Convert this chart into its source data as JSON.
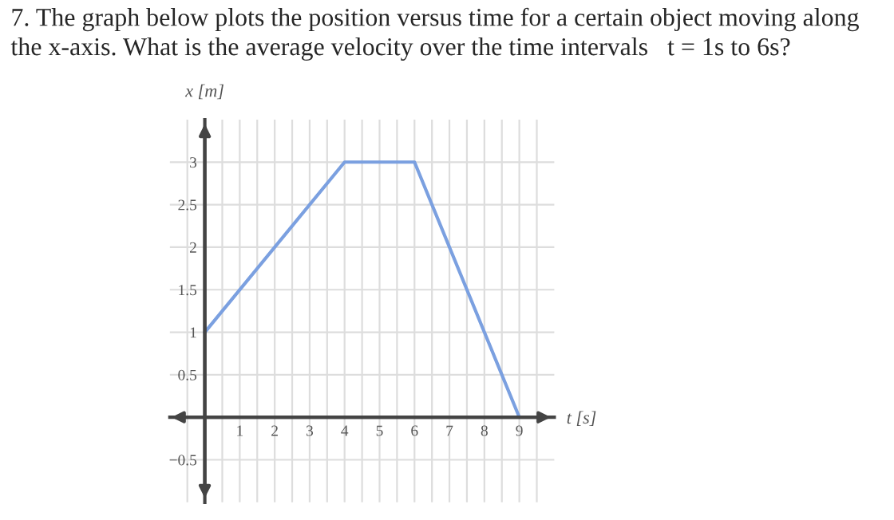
{
  "chart_data": {
    "type": "line",
    "title": "7. The graph below plots the position versus time for a certain object moving along the x-axis. What is the average velocity over the time intervals   t = 1s to 6s?",
    "xlabel": "t [s]",
    "ylabel": "x [m]",
    "x": [
      0,
      4,
      6,
      9
    ],
    "series": [
      {
        "color": "#7ba0e0",
        "values": [
          1,
          3,
          3,
          0
        ]
      }
    ],
    "xlim": [
      -1,
      10
    ],
    "ylim": [
      -1,
      3.5
    ],
    "xticks": [
      {
        "value": -0.5,
        "label": null
      },
      {
        "value": 0.5,
        "label": null
      },
      1,
      {
        "value": 1.5,
        "label": null
      },
      2,
      {
        "value": 2.5,
        "label": null
      },
      3,
      {
        "value": 3.5,
        "label": null
      },
      4,
      {
        "value": 4.5,
        "label": null
      },
      5,
      {
        "value": 5.5,
        "label": null
      },
      6,
      {
        "value": 6.5,
        "label": null
      },
      7,
      {
        "value": 7.5,
        "label": null
      },
      8,
      {
        "value": 8.5,
        "label": null
      },
      9,
      {
        "value": 9.5,
        "label": null
      }
    ],
    "yticks": [
      -0.5,
      0.5,
      1,
      1.5,
      2,
      2.5,
      3
    ],
    "grid": true,
    "marker": "none",
    "line_style": "solid",
    "legend": false
  }
}
